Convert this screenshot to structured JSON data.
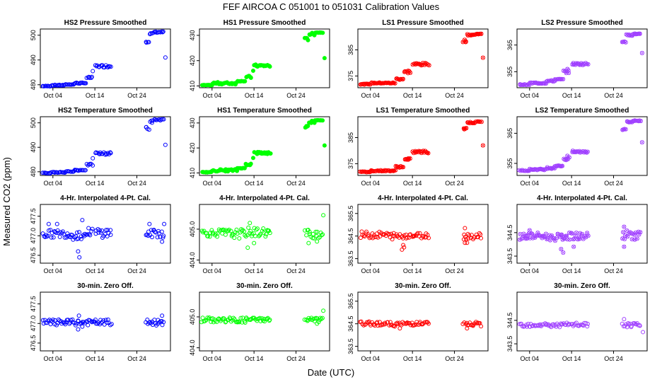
{
  "figure": {
    "title": "FEF   AIRCOA C   051001 to 051031   Calibration Values",
    "ylabel": "Measured CO2 (ppm)",
    "xlabel": "Date (UTC)",
    "x_tick_labels": [
      "Oct 04",
      "Oct 14",
      "Oct 24"
    ]
  },
  "chart_data": [
    {
      "type": "scatter",
      "title": "HS2 Pressure Smoothed",
      "color": "#0000ff",
      "marker": "circle",
      "xlim": [
        1,
        32
      ],
      "ylim": [
        478.8,
        502.5
      ],
      "y_ticks": [
        480,
        490,
        500
      ],
      "x_ticks": [
        4,
        14,
        24
      ],
      "segments": [
        [
          1.5,
          3.5,
          479.3,
          479.6
        ],
        [
          3.5,
          7,
          479.6,
          480.0
        ],
        [
          7,
          9,
          480.0,
          480.2
        ],
        [
          9,
          11,
          480.4,
          480.9
        ],
        [
          11,
          12,
          480.6,
          480.7
        ],
        [
          12,
          13.5,
          482.5,
          483.2
        ],
        [
          14,
          18,
          487,
          488
        ],
        [
          26,
          27,
          497,
          499
        ],
        [
          27,
          28,
          500,
          501
        ],
        [
          28,
          30.5,
          501,
          501.5
        ]
      ],
      "points": [
        [
          9,
          480.3
        ],
        [
          13.5,
          485.5
        ],
        [
          30.8,
          491
        ]
      ]
    },
    {
      "type": "scatter",
      "title": "HS1 Pressure Smoothed",
      "color": "#00ff00",
      "marker": "filled-circle",
      "xlim": [
        1,
        32
      ],
      "ylim": [
        409.3,
        432.5
      ],
      "y_ticks": [
        410,
        420,
        430
      ],
      "x_ticks": [
        4,
        14,
        24
      ],
      "segments": [
        [
          1.5,
          4,
          410.2,
          410.4
        ],
        [
          4,
          10,
          410.6,
          411.5
        ],
        [
          10,
          12,
          411.8,
          412.0
        ],
        [
          12,
          13.5,
          413,
          414
        ],
        [
          14,
          18,
          417.5,
          418.5
        ],
        [
          26,
          27,
          428,
          429
        ],
        [
          27,
          28.5,
          430,
          431
        ],
        [
          28.5,
          30.5,
          431,
          431.2
        ]
      ],
      "points": [
        [
          13.8,
          416
        ],
        [
          30.8,
          421
        ]
      ]
    },
    {
      "type": "scatter",
      "title": "LS1 Pressure Smoothed",
      "color": "#ff0000",
      "marker": "crosshatch",
      "xlim": [
        1,
        32
      ],
      "ylim": [
        370.5,
        393
      ],
      "y_ticks": [
        375,
        385
      ],
      "x_ticks": [
        4,
        14,
        24
      ],
      "segments": [
        [
          1.5,
          4,
          371.7,
          372.0
        ],
        [
          4,
          10,
          372.1,
          372.5
        ],
        [
          10,
          12,
          373.5,
          374.2
        ],
        [
          12,
          13.5,
          376,
          377
        ],
        [
          14,
          18,
          379,
          380
        ],
        [
          26,
          27,
          388,
          389
        ],
        [
          27,
          29,
          390.5,
          391
        ],
        [
          29,
          30.5,
          391,
          391.2
        ]
      ],
      "points": [
        [
          13,
          377
        ],
        [
          30.8,
          382
        ]
      ]
    },
    {
      "type": "scatter",
      "title": "LS2 Pressure Smoothed",
      "color": "#a040ff",
      "marker": "crosshatch",
      "xlim": [
        1,
        32
      ],
      "ylim": [
        349,
        371
      ],
      "y_ticks": [
        355,
        365
      ],
      "x_ticks": [
        4,
        14,
        24
      ],
      "segments": [
        [
          1.5,
          4,
          350.0,
          350.3
        ],
        [
          4,
          8,
          350.5,
          351
        ],
        [
          8,
          10,
          351.2,
          351.8
        ],
        [
          10,
          12,
          352,
          352.3
        ],
        [
          12,
          13.5,
          354.5,
          355.5
        ],
        [
          14,
          18,
          357.5,
          358.3
        ],
        [
          26,
          27,
          366,
          367
        ],
        [
          27,
          28.5,
          368.5,
          369
        ],
        [
          28.5,
          30.5,
          369,
          369.3
        ]
      ],
      "points": [
        [
          13,
          356
        ],
        [
          30.8,
          362
        ]
      ]
    },
    {
      "type": "scatter",
      "title": "HS2 Temperature Smoothed",
      "color": "#0000ff",
      "marker": "circle",
      "xlim": [
        1,
        32
      ],
      "ylim": [
        478.5,
        502.5
      ],
      "y_ticks": [
        480,
        490,
        500
      ],
      "x_ticks": [
        4,
        14,
        24
      ],
      "segments": [
        [
          1.5,
          3.5,
          479.3,
          479.6
        ],
        [
          3.5,
          7,
          479.6,
          480.0
        ],
        [
          7,
          9,
          480.0,
          480.2
        ],
        [
          9,
          11,
          480.4,
          480.9
        ],
        [
          11,
          12,
          480.6,
          480.7
        ],
        [
          12,
          13.5,
          482.5,
          483.2
        ],
        [
          14,
          18,
          487,
          488
        ],
        [
          26,
          27,
          497,
          499
        ],
        [
          27,
          28,
          500,
          501
        ],
        [
          28,
          30.5,
          501,
          501.5
        ]
      ],
      "points": [
        [
          9,
          480.3
        ],
        [
          13.5,
          485.5
        ],
        [
          30.8,
          491
        ]
      ]
    },
    {
      "type": "scatter",
      "title": "HS1 Temperature Smoothed",
      "color": "#00ff00",
      "marker": "filled-circle",
      "xlim": [
        1,
        32
      ],
      "ylim": [
        409,
        432.5
      ],
      "y_ticks": [
        410,
        420,
        430
      ],
      "x_ticks": [
        4,
        14,
        24
      ],
      "segments": [
        [
          1.5,
          4,
          410.2,
          410.4
        ],
        [
          4,
          10,
          410.6,
          411.5
        ],
        [
          10,
          12,
          411.8,
          412.0
        ],
        [
          12,
          13.5,
          413,
          414
        ],
        [
          14,
          18,
          417.5,
          418.5
        ],
        [
          26,
          27,
          428,
          429
        ],
        [
          27,
          28.5,
          430,
          431
        ],
        [
          28.5,
          30.5,
          431,
          431.2
        ]
      ],
      "points": [
        [
          13.8,
          416
        ],
        [
          30.8,
          421
        ]
      ]
    },
    {
      "type": "scatter",
      "title": "LS1 Temperature Smoothed",
      "color": "#ff0000",
      "marker": "crosshatch",
      "xlim": [
        1,
        32
      ],
      "ylim": [
        370.5,
        393
      ],
      "y_ticks": [
        375,
        385
      ],
      "x_ticks": [
        4,
        14,
        24
      ],
      "segments": [
        [
          1.5,
          4,
          371.7,
          372.0
        ],
        [
          4,
          10,
          372.1,
          372.5
        ],
        [
          10,
          12,
          373.5,
          374.2
        ],
        [
          12,
          13.5,
          376,
          377
        ],
        [
          14,
          18,
          379,
          380
        ],
        [
          26,
          27,
          388,
          389
        ],
        [
          27,
          29,
          390.5,
          391
        ],
        [
          29,
          30.5,
          391,
          391.2
        ]
      ],
      "points": [
        [
          13,
          377
        ],
        [
          30.8,
          382
        ]
      ]
    },
    {
      "type": "scatter",
      "title": "LS2 Temperature Smoothed",
      "color": "#a040ff",
      "marker": "crosshatch",
      "xlim": [
        1,
        32
      ],
      "ylim": [
        351,
        370.5
      ],
      "y_ticks": [
        355,
        365
      ],
      "x_ticks": [
        4,
        14,
        24
      ],
      "segments": [
        [
          1.5,
          4,
          352.5,
          352.8
        ],
        [
          4,
          8,
          352.8,
          353.2
        ],
        [
          8,
          10,
          353.2,
          353.8
        ],
        [
          10,
          12,
          354,
          354.3
        ],
        [
          12,
          13.5,
          356,
          357
        ],
        [
          14,
          18,
          358.5,
          359.2
        ],
        [
          26,
          27,
          366,
          367
        ],
        [
          27,
          28.5,
          368.5,
          369
        ],
        [
          28.5,
          30.5,
          369,
          369.3
        ]
      ],
      "points": [
        [
          13,
          357.5
        ],
        [
          30.8,
          362
        ]
      ]
    },
    {
      "type": "scatter",
      "title": "4-Hr. Interpolated 4-Pt. Cal.",
      "color": "#0000ff",
      "marker": "circle",
      "xlim": [
        1,
        32
      ],
      "ylim": [
        476.3,
        477.8
      ],
      "y_ticks": [
        476.5,
        477.0,
        477.5
      ],
      "x_ticks": [
        4,
        14,
        24
      ],
      "segments": [
        [
          1.5,
          8,
          476.95,
          477.15
        ],
        [
          8,
          12,
          476.9,
          477.15
        ],
        [
          12,
          13.5,
          477.0,
          477.2
        ],
        [
          14,
          18,
          476.95,
          477.2
        ],
        [
          26,
          28,
          476.95,
          477.15
        ],
        [
          28,
          30.5,
          476.95,
          477.2
        ]
      ],
      "points": [
        [
          3,
          477.3
        ],
        [
          5,
          477.3
        ],
        [
          10,
          476.6
        ],
        [
          10.3,
          476.45
        ],
        [
          11,
          477.4
        ],
        [
          27,
          477.3
        ],
        [
          30.5,
          477.3
        ],
        [
          30,
          476.85
        ]
      ]
    },
    {
      "type": "scatter",
      "title": "4-Hr. Interpolated 4-Pt. Cal.",
      "color": "#00ff00",
      "marker": "circle",
      "xlim": [
        1,
        32
      ],
      "ylim": [
        403.9,
        405.8
      ],
      "y_ticks": [
        404.0,
        405.0
      ],
      "x_ticks": [
        4,
        14,
        24
      ],
      "segments": [
        [
          1.5,
          8,
          404.75,
          405.0
        ],
        [
          8,
          12,
          404.7,
          405.0
        ],
        [
          12,
          18,
          404.75,
          405.05
        ],
        [
          26,
          30.5,
          404.7,
          405.0
        ]
      ],
      "points": [
        [
          12.5,
          404.4
        ],
        [
          13,
          405.2
        ],
        [
          14,
          404.55
        ],
        [
          27,
          404.55
        ],
        [
          30.5,
          405.45
        ],
        [
          29,
          404.6
        ]
      ]
    },
    {
      "type": "scatter",
      "title": "4-Hr. Interpolated 4-Pt. Cal.",
      "color": "#ff0000",
      "marker": "circle",
      "xlim": [
        1,
        32
      ],
      "ylim": [
        363.3,
        365.9
      ],
      "y_ticks": [
        363.5,
        364.5,
        365.5
      ],
      "x_ticks": [
        4,
        14,
        24
      ],
      "segments": [
        [
          1.5,
          8,
          364.4,
          364.7
        ],
        [
          8,
          12,
          364.35,
          364.65
        ],
        [
          12,
          18,
          364.4,
          364.65
        ],
        [
          26,
          30.5,
          364.35,
          364.65
        ]
      ],
      "points": [
        [
          11.5,
          363.9
        ],
        [
          12,
          364.0
        ],
        [
          11.8,
          364.1
        ],
        [
          26.5,
          364.2
        ],
        [
          27,
          364.2
        ],
        [
          26.5,
          364.85
        ]
      ]
    },
    {
      "type": "scatter",
      "title": "4-Hr. Interpolated 4-Pt. Cal.",
      "color": "#a040ff",
      "marker": "crosshatch",
      "xlim": [
        1,
        32
      ],
      "ylim": [
        343.2,
        345.7
      ],
      "y_ticks": [
        343.5,
        344.5
      ],
      "x_ticks": [
        4,
        14,
        24
      ],
      "segments": [
        [
          1.5,
          8,
          344.2,
          344.5
        ],
        [
          8,
          12,
          344.15,
          344.45
        ],
        [
          12,
          18,
          344.2,
          344.5
        ],
        [
          26,
          30.5,
          344.2,
          344.6
        ]
      ],
      "points": [
        [
          4,
          344.6
        ],
        [
          11.5,
          343.8
        ],
        [
          12,
          343.65
        ],
        [
          14.5,
          343.9
        ],
        [
          26.5,
          343.9
        ],
        [
          26.5,
          344.75
        ]
      ]
    },
    {
      "type": "scatter",
      "title": "30-min. Zero Off.",
      "color": "#0000ff",
      "marker": "circle",
      "xlim": [
        1,
        32
      ],
      "ylim": [
        476.3,
        477.8
      ],
      "y_ticks": [
        476.5,
        477.0,
        477.5
      ],
      "x_ticks": [
        4,
        14,
        24
      ],
      "segments": [
        [
          1.5,
          8,
          476.95,
          477.1
        ],
        [
          8,
          12,
          476.95,
          477.1
        ],
        [
          12,
          18,
          476.95,
          477.1
        ],
        [
          26,
          30.5,
          476.95,
          477.1
        ]
      ],
      "points": [
        [
          10,
          476.85
        ],
        [
          10.2,
          477.2
        ],
        [
          11,
          476.92
        ],
        [
          30,
          477.2
        ]
      ]
    },
    {
      "type": "scatter",
      "title": "30-min. Zero Off.",
      "color": "#00ff00",
      "marker": "circle",
      "xlim": [
        1,
        32
      ],
      "ylim": [
        403.9,
        405.8
      ],
      "y_ticks": [
        404.0,
        405.0
      ],
      "x_ticks": [
        4,
        14,
        24
      ],
      "segments": [
        [
          1.5,
          8,
          404.82,
          404.98
        ],
        [
          8,
          12,
          404.8,
          404.98
        ],
        [
          12,
          18,
          404.85,
          404.98
        ],
        [
          26,
          30.5,
          404.82,
          404.98
        ]
      ],
      "points": [
        [
          30.5,
          405.2
        ],
        [
          29,
          404.78
        ]
      ]
    },
    {
      "type": "scatter",
      "title": "30-min. Zero Off.",
      "color": "#ff0000",
      "marker": "circle",
      "xlim": [
        1,
        32
      ],
      "ylim": [
        363.3,
        365.9
      ],
      "y_ticks": [
        363.5,
        364.5,
        365.5
      ],
      "x_ticks": [
        4,
        14,
        24
      ],
      "segments": [
        [
          1.5,
          8,
          364.42,
          364.6
        ],
        [
          8,
          12,
          364.38,
          364.58
        ],
        [
          12,
          18,
          364.42,
          364.6
        ],
        [
          26,
          30.5,
          364.38,
          364.58
        ]
      ],
      "points": [
        [
          11,
          364.3
        ],
        [
          27,
          364.3
        ]
      ]
    },
    {
      "type": "scatter",
      "title": "30-min. Zero Off.",
      "color": "#a040ff",
      "marker": "circle",
      "xlim": [
        1,
        32
      ],
      "ylim": [
        343.2,
        345.7
      ],
      "y_ticks": [
        343.5,
        344.5
      ],
      "x_ticks": [
        4,
        14,
        24
      ],
      "segments": [
        [
          1.5,
          8,
          344.22,
          344.4
        ],
        [
          8,
          12,
          344.2,
          344.38
        ],
        [
          12,
          18,
          344.22,
          344.4
        ],
        [
          26,
          30.5,
          344.2,
          344.38
        ]
      ],
      "points": [
        [
          26.5,
          344.55
        ],
        [
          31,
          344.0
        ]
      ]
    }
  ]
}
